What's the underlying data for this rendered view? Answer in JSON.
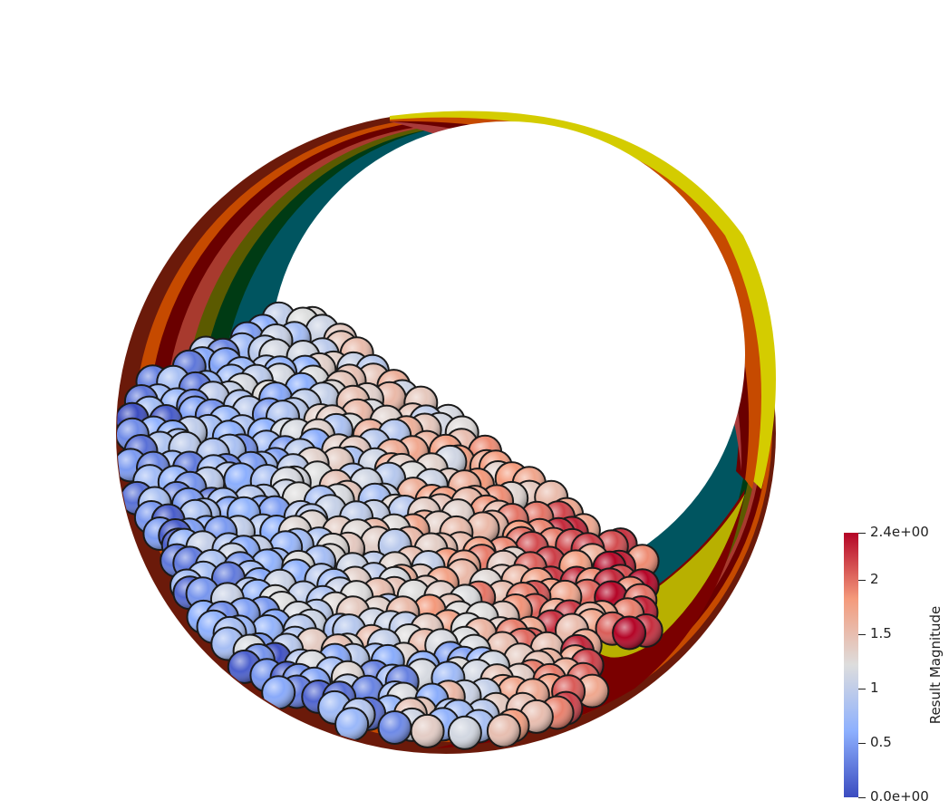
{
  "scene": {
    "description_name": "particle-drum-simulation"
  },
  "colorbar": {
    "title": "Result Magnitude",
    "min_label": "0.0e+00",
    "max_label": "2.4e+00",
    "ticks": [
      {
        "value": 2.4,
        "label": "2.4e+00"
      },
      {
        "value": 2.0,
        "label": "2"
      },
      {
        "value": 1.5,
        "label": "1.5"
      },
      {
        "value": 1.0,
        "label": "1"
      },
      {
        "value": 0.5,
        "label": "0.5"
      },
      {
        "value": 0.0,
        "label": "0.0e+00"
      }
    ],
    "colormap": [
      "#3b4cc0",
      "#8db0fe",
      "#dddddd",
      "#f49a7b",
      "#b40426"
    ]
  }
}
